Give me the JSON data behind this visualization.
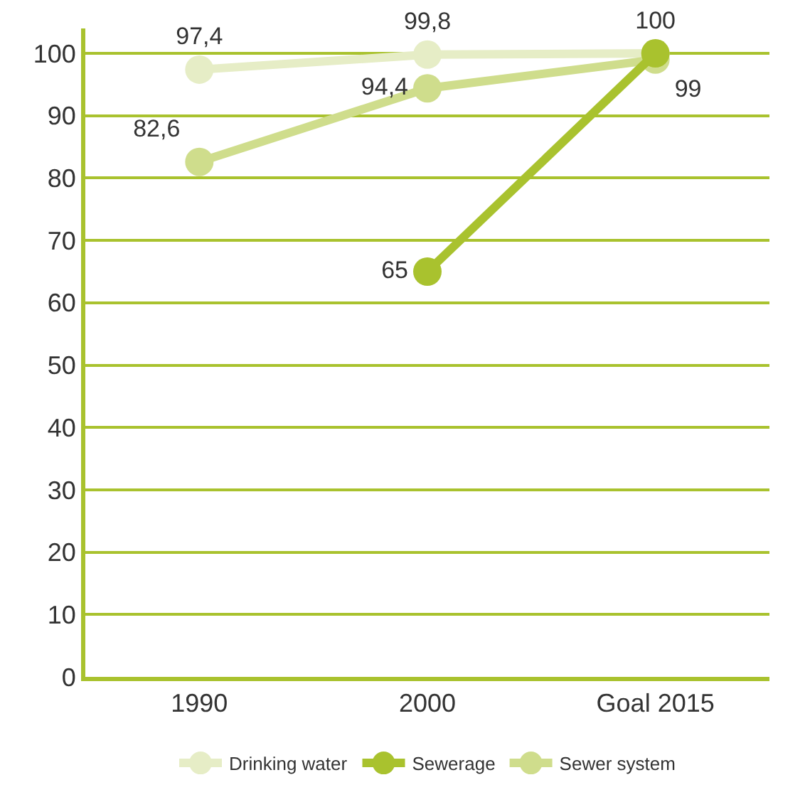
{
  "chart_data": {
    "type": "line",
    "categories": [
      "1990",
      "2000",
      "Goal 2015"
    ],
    "series": [
      {
        "name": "Drinking water",
        "color": "#e6edc6",
        "values": [
          97.4,
          99.8,
          100
        ],
        "value_labels": [
          "97,4",
          "99,8",
          "100"
        ]
      },
      {
        "name": "Sewerage",
        "color": "#a9c22e",
        "values": [
          null,
          65,
          100
        ],
        "value_labels": [
          null,
          "65",
          null
        ]
      },
      {
        "name": "Sewer system",
        "color": "#cfdd8c",
        "values": [
          82.6,
          94.4,
          99
        ],
        "value_labels": [
          "82,6",
          "94,4",
          "99"
        ]
      }
    ],
    "ylim": [
      0,
      104
    ],
    "yticks": [
      0,
      10,
      20,
      30,
      40,
      50,
      60,
      70,
      80,
      90,
      100
    ],
    "grid": "y",
    "legend": "bottom",
    "marker": "circle",
    "line_style": "solid"
  }
}
